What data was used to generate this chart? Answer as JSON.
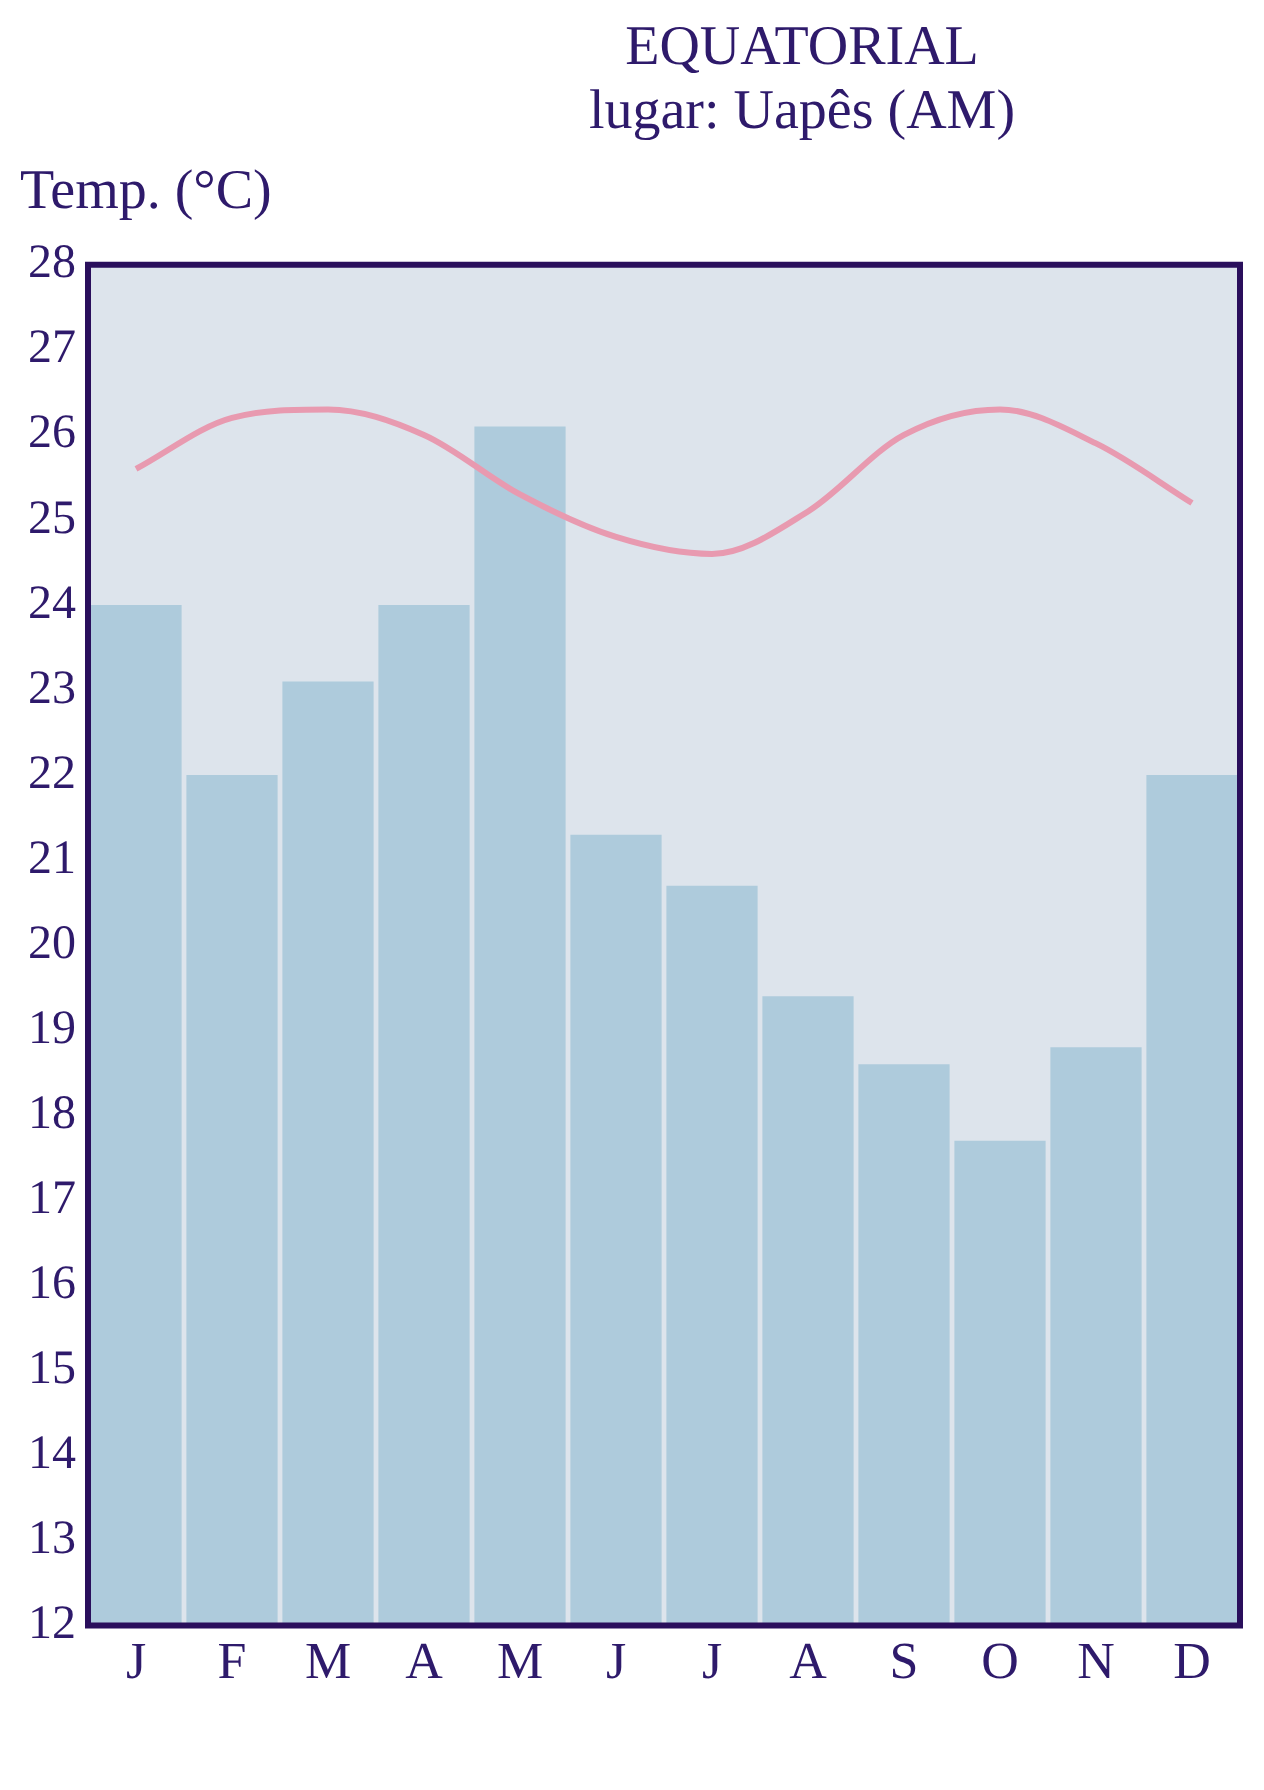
{
  "chart_data": {
    "type": "bar",
    "title": "EQUATORIAL",
    "subtitle": "lugar: Uapês (AM)",
    "ylabel": "Temp. (°C)",
    "categories": [
      "J",
      "F",
      "M",
      "A",
      "M",
      "J",
      "J",
      "A",
      "S",
      "O",
      "N",
      "D"
    ],
    "series": [
      {
        "color": "#aecbdc",
        "values": [
          24,
          22,
          23.1,
          24,
          26.1,
          21.3,
          20.7,
          19.4,
          18.6,
          17.7,
          18.8,
          22
        ]
      },
      {
        "type": "line",
        "color": "#e89ab0",
        "values": [
          25.6,
          26.2,
          26.3,
          26,
          25.3,
          24.8,
          24.6,
          25.1,
          26,
          26.3,
          25.9,
          25.2
        ]
      }
    ],
    "ylim": [
      12,
      28
    ],
    "yticks": [
      12,
      13,
      14,
      15,
      16,
      17,
      18,
      19,
      20,
      21,
      22,
      23,
      24,
      25,
      26,
      27,
      28
    ],
    "grid": false,
    "legend": false,
    "marker": "none",
    "line_style": "solid"
  }
}
